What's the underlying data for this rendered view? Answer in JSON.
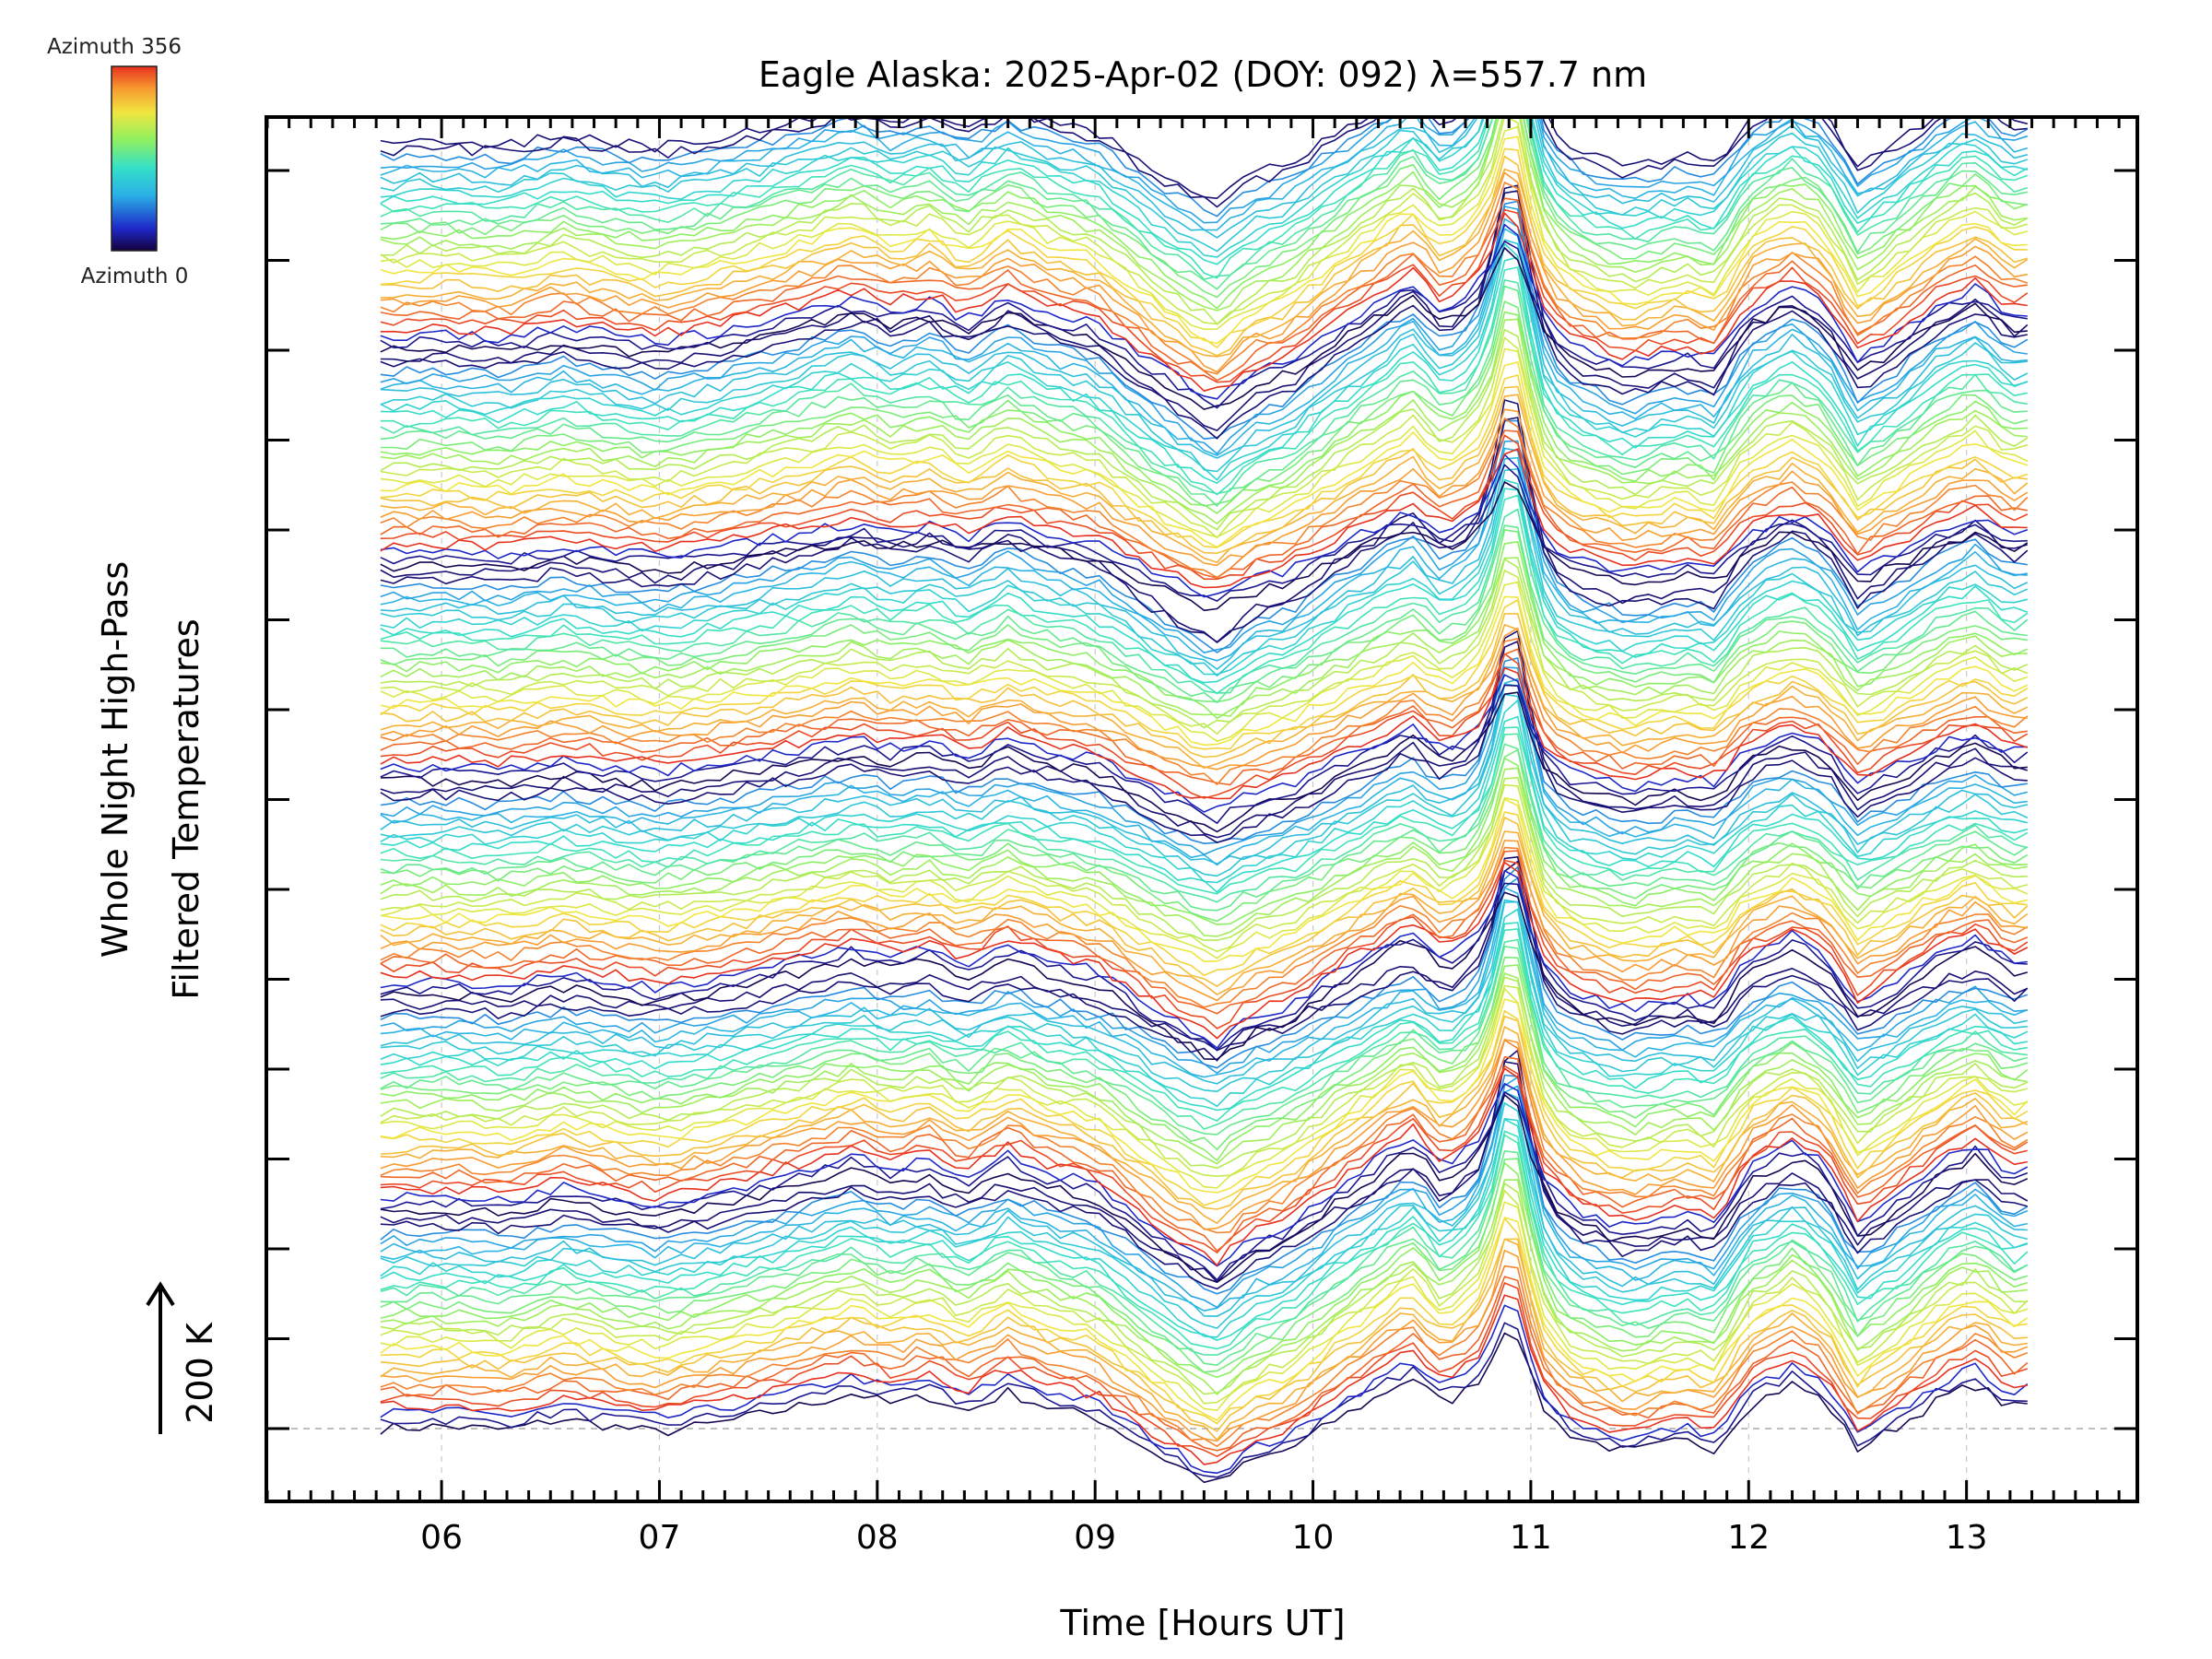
{
  "chart_data": {
    "type": "line",
    "title": "Eagle Alaska: 2025-Apr-02 (DOY: 092) λ=557.7 nm",
    "xlabel": "Time [Hours UT]",
    "ylabel_line1": "Whole Night High-Pass",
    "ylabel_line2": "Filtered Temperatures",
    "scale_label": "200 K",
    "xlim": [
      5.2,
      13.78
    ],
    "x_ticks": [
      "06",
      "07",
      "08",
      "09",
      "10",
      "11",
      "12",
      "13"
    ],
    "x_tick_values": [
      6,
      7,
      8,
      9,
      10,
      11,
      12,
      13
    ],
    "colorbar": {
      "top_label": "Azimuth 356",
      "bottom_label": "Azimuth 0",
      "azimuth_range": [
        0,
        356
      ]
    },
    "series_count": 180,
    "series_per_group": 30,
    "groups": 6,
    "time_start": 5.72,
    "time_end": 13.28,
    "base_profile": {
      "x": [
        5.72,
        6.0,
        6.3,
        6.55,
        6.85,
        7.0,
        7.3,
        7.6,
        7.9,
        8.05,
        8.25,
        8.4,
        8.6,
        8.8,
        9.0,
        9.3,
        9.55,
        9.72,
        9.9,
        10.1,
        10.3,
        10.45,
        10.6,
        10.75,
        10.9,
        11.02,
        11.2,
        11.45,
        11.7,
        11.85,
        12.0,
        12.2,
        12.35,
        12.5,
        12.7,
        12.9,
        13.05,
        13.2,
        13.28
      ],
      "y": [
        0,
        3,
        -2,
        12,
        0,
        -5,
        8,
        25,
        45,
        30,
        40,
        20,
        45,
        25,
        15,
        -35,
        -70,
        -40,
        -25,
        10,
        40,
        65,
        30,
        55,
        75,
        25,
        -10,
        -30,
        -15,
        -25,
        30,
        55,
        35,
        -25,
        5,
        40,
        55,
        25,
        30
      ]
    },
    "spike": {
      "x": 10.92,
      "peak": 150,
      "width": 0.1
    },
    "group_spacing": 100
  }
}
